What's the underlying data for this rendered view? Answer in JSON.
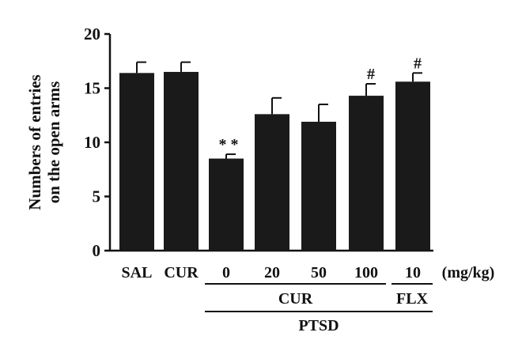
{
  "chart_data": {
    "type": "bar",
    "ylabel_lines": [
      "Numbers of entries",
      "on the open arms"
    ],
    "ylim": [
      0,
      20
    ],
    "yticks": [
      0,
      5,
      10,
      15,
      20
    ],
    "categories": [
      "SAL",
      "CUR",
      "0",
      "20",
      "50",
      "100",
      "10"
    ],
    "values": [
      16.4,
      16.5,
      8.5,
      12.6,
      11.9,
      14.3,
      15.6
    ],
    "errors": [
      1.0,
      0.9,
      0.4,
      1.5,
      1.6,
      1.1,
      0.8
    ],
    "annotations": [
      "",
      "",
      "**",
      "",
      "",
      "#",
      "#"
    ],
    "unit": "(mg/kg)",
    "groups": [
      {
        "label": "CUR",
        "from": 2,
        "to": 5
      },
      {
        "label": "FLX",
        "from": 6,
        "to": 6
      },
      {
        "label": "PTSD",
        "from": 2,
        "to": 6
      }
    ],
    "bar_color": "#1a1a1a",
    "grid": false,
    "legend": "none"
  }
}
